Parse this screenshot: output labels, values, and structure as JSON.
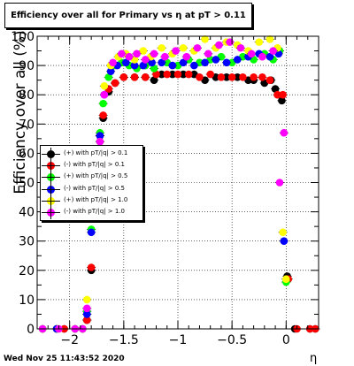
{
  "chart_data": {
    "type": "scatter",
    "title": "Efficiency over all for Primary vs   η at pT > 0.11",
    "xlabel": "η",
    "ylabel": "Efficiency over all (%)",
    "xlim": [
      -2.3,
      0.3
    ],
    "ylim": [
      0,
      100
    ],
    "x_ticks": [
      -2,
      -1.5,
      -1,
      -0.5,
      0
    ],
    "x_tick_labels": [
      "−2",
      "−1.5",
      "−1",
      "−0.5",
      "0"
    ],
    "y_ticks": [
      0,
      10,
      20,
      30,
      40,
      50,
      60,
      70,
      80,
      90,
      100
    ],
    "y_tick_labels": [
      "0",
      "10",
      "20",
      "30",
      "40",
      "50",
      "60",
      "70",
      "80",
      "90",
      "100"
    ],
    "grid": true,
    "legend_position": "center-left",
    "timestamp": "Wed Nov 25 11:43:52 2020",
    "series": [
      {
        "name": "(+) with pT/|q| > 0.1",
        "color": "#000000",
        "points": [
          [
            -2.25,
            0
          ],
          [
            -2.12,
            0
          ],
          [
            -2.05,
            0
          ],
          [
            -1.95,
            0
          ],
          [
            -1.88,
            0
          ],
          [
            -1.84,
            3
          ],
          [
            -1.8,
            20
          ],
          [
            -1.75,
            45
          ],
          [
            -1.72,
            66
          ],
          [
            -1.69,
            72
          ],
          [
            -1.64,
            81
          ],
          [
            -1.58,
            84
          ],
          [
            -1.5,
            86
          ],
          [
            -1.4,
            86
          ],
          [
            -1.3,
            86
          ],
          [
            -1.22,
            85
          ],
          [
            -1.15,
            87
          ],
          [
            -1.05,
            87
          ],
          [
            -0.95,
            87
          ],
          [
            -0.85,
            87
          ],
          [
            -0.75,
            85
          ],
          [
            -0.65,
            86
          ],
          [
            -0.55,
            86
          ],
          [
            -0.45,
            86
          ],
          [
            -0.35,
            85
          ],
          [
            -0.3,
            85
          ],
          [
            -0.2,
            84
          ],
          [
            -0.14,
            85
          ],
          [
            -0.1,
            82
          ],
          [
            -0.04,
            78
          ],
          [
            0.01,
            18
          ],
          [
            0.08,
            0
          ],
          [
            0.22,
            0
          ],
          [
            0.27,
            0
          ]
        ]
      },
      {
        "name": "(-) with pT/|q| > 0.1",
        "color": "#ff0000",
        "points": [
          [
            -2.25,
            0
          ],
          [
            -2.12,
            0
          ],
          [
            -2.05,
            0
          ],
          [
            -1.95,
            0
          ],
          [
            -1.88,
            0
          ],
          [
            -1.84,
            3
          ],
          [
            -1.8,
            21
          ],
          [
            -1.75,
            46
          ],
          [
            -1.72,
            66
          ],
          [
            -1.69,
            73
          ],
          [
            -1.64,
            82
          ],
          [
            -1.58,
            84
          ],
          [
            -1.5,
            86
          ],
          [
            -1.4,
            86
          ],
          [
            -1.3,
            86
          ],
          [
            -1.2,
            87
          ],
          [
            -1.1,
            87
          ],
          [
            -1.0,
            87
          ],
          [
            -0.9,
            87
          ],
          [
            -0.8,
            86
          ],
          [
            -0.7,
            87
          ],
          [
            -0.6,
            86
          ],
          [
            -0.5,
            86
          ],
          [
            -0.4,
            86
          ],
          [
            -0.3,
            86
          ],
          [
            -0.22,
            86
          ],
          [
            -0.15,
            85
          ],
          [
            -0.08,
            80
          ],
          [
            -0.03,
            80
          ],
          [
            0.02,
            17
          ],
          [
            0.1,
            0
          ],
          [
            0.22,
            0
          ],
          [
            0.27,
            0
          ]
        ]
      },
      {
        "name": "(+) with pT/|q| > 0.5",
        "color": "#00ff00",
        "points": [
          [
            -2.25,
            0
          ],
          [
            -2.12,
            0
          ],
          [
            -1.95,
            0
          ],
          [
            -1.88,
            0
          ],
          [
            -1.84,
            6
          ],
          [
            -1.8,
            34
          ],
          [
            -1.72,
            67
          ],
          [
            -1.69,
            77
          ],
          [
            -1.64,
            86
          ],
          [
            -1.58,
            90
          ],
          [
            -1.52,
            91
          ],
          [
            -1.45,
            90
          ],
          [
            -1.38,
            89
          ],
          [
            -1.3,
            90
          ],
          [
            -1.22,
            89
          ],
          [
            -1.1,
            91
          ],
          [
            -1.0,
            90
          ],
          [
            -0.9,
            92
          ],
          [
            -0.8,
            91
          ],
          [
            -0.7,
            92
          ],
          [
            -0.6,
            93
          ],
          [
            -0.5,
            91
          ],
          [
            -0.4,
            93
          ],
          [
            -0.3,
            92
          ],
          [
            -0.2,
            94
          ],
          [
            -0.12,
            92
          ],
          [
            -0.06,
            95
          ],
          [
            0.0,
            16
          ]
        ]
      },
      {
        "name": "(-) with pT/|q| > 0.5",
        "color": "#0000ff",
        "points": [
          [
            -2.25,
            0
          ],
          [
            -2.12,
            0
          ],
          [
            -1.95,
            0
          ],
          [
            -1.88,
            0
          ],
          [
            -1.84,
            5
          ],
          [
            -1.8,
            33
          ],
          [
            -1.72,
            66
          ],
          [
            -1.68,
            80
          ],
          [
            -1.62,
            88
          ],
          [
            -1.56,
            90
          ],
          [
            -1.48,
            91
          ],
          [
            -1.4,
            90
          ],
          [
            -1.32,
            90
          ],
          [
            -1.24,
            91
          ],
          [
            -1.15,
            91
          ],
          [
            -1.05,
            90
          ],
          [
            -0.95,
            91
          ],
          [
            -0.85,
            90
          ],
          [
            -0.75,
            91
          ],
          [
            -0.65,
            92
          ],
          [
            -0.55,
            91
          ],
          [
            -0.45,
            92
          ],
          [
            -0.35,
            93
          ],
          [
            -0.25,
            94
          ],
          [
            -0.15,
            93
          ],
          [
            -0.07,
            94
          ],
          [
            -0.02,
            30
          ]
        ]
      },
      {
        "name": "(+) with pT/|q| > 1.0",
        "color": "#ffff00",
        "points": [
          [
            -2.25,
            0
          ],
          [
            -2.1,
            0
          ],
          [
            -1.95,
            0
          ],
          [
            -1.88,
            0
          ],
          [
            -1.84,
            10
          ],
          [
            -1.72,
            64
          ],
          [
            -1.68,
            83
          ],
          [
            -1.62,
            90
          ],
          [
            -1.55,
            93
          ],
          [
            -1.48,
            94
          ],
          [
            -1.4,
            92
          ],
          [
            -1.32,
            95
          ],
          [
            -1.25,
            93
          ],
          [
            -1.15,
            96
          ],
          [
            -1.05,
            94
          ],
          [
            -0.95,
            96
          ],
          [
            -0.85,
            95
          ],
          [
            -0.75,
            99
          ],
          [
            -0.65,
            96
          ],
          [
            -0.55,
            98
          ],
          [
            -0.45,
            97
          ],
          [
            -0.35,
            95
          ],
          [
            -0.25,
            98
          ],
          [
            -0.15,
            99
          ],
          [
            -0.08,
            96
          ],
          [
            -0.03,
            33
          ],
          [
            0.0,
            17
          ]
        ]
      },
      {
        "name": "(-) with pT/|q| > 1.0",
        "color": "#ff00ff",
        "points": [
          [
            -2.25,
            0
          ],
          [
            -2.1,
            0
          ],
          [
            -1.95,
            0
          ],
          [
            -1.88,
            0
          ],
          [
            -1.84,
            7
          ],
          [
            -1.72,
            64
          ],
          [
            -1.68,
            80
          ],
          [
            -1.6,
            91
          ],
          [
            -1.52,
            94
          ],
          [
            -1.45,
            93
          ],
          [
            -1.38,
            94
          ],
          [
            -1.3,
            92
          ],
          [
            -1.22,
            94
          ],
          [
            -1.12,
            93
          ],
          [
            -1.02,
            95
          ],
          [
            -0.92,
            93
          ],
          [
            -0.82,
            96
          ],
          [
            -0.72,
            94
          ],
          [
            -0.62,
            97
          ],
          [
            -0.52,
            98
          ],
          [
            -0.42,
            96
          ],
          [
            -0.32,
            94
          ],
          [
            -0.22,
            93
          ],
          [
            -0.12,
            95
          ],
          [
            -0.06,
            50
          ],
          [
            -0.02,
            67
          ]
        ]
      }
    ]
  }
}
